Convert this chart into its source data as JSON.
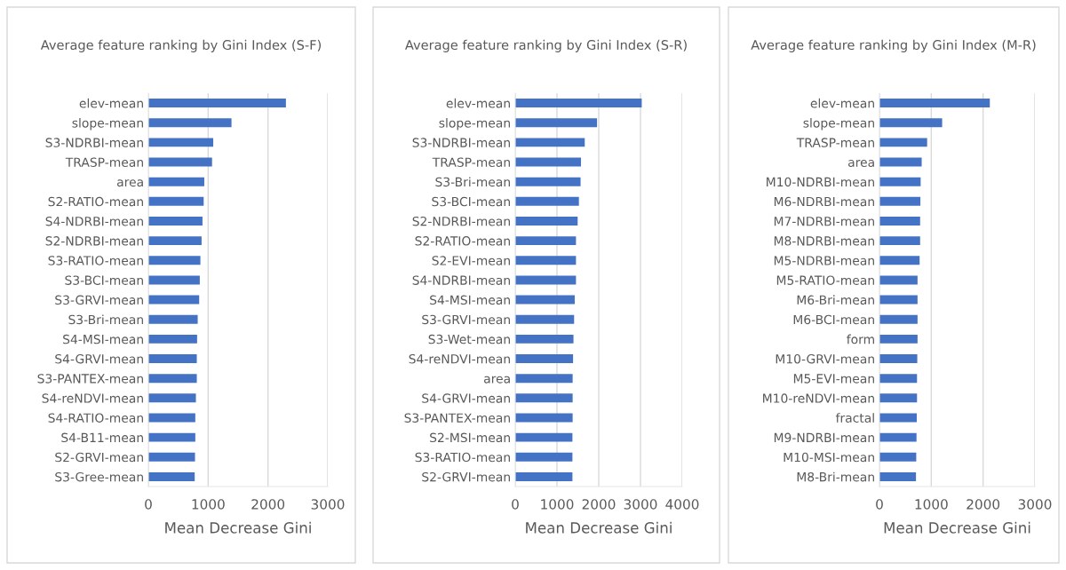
{
  "chart_data": [
    {
      "type": "bar",
      "orientation": "horizontal",
      "title": "Average feature ranking by Gini Index (S-F)",
      "xlabel": "Mean Decrease Gini",
      "categories": [
        "elev-mean",
        "slope-mean",
        "S3-NDRBI-mean",
        "TRASP-mean",
        "area",
        "S2-RATIO-mean",
        "S4-NDRBI-mean",
        "S2-NDRBI-mean",
        "S3-RATIO-mean",
        "S3-BCI-mean",
        "S3-GRVI-mean",
        "S3-Bri-mean",
        "S4-MSI-mean",
        "S4-GRVI-mean",
        "S3-PANTEX-mean",
        "S4-reNDVI-mean",
        "S4-RATIO-mean",
        "S4-B11-mean",
        "S2-GRVI-mean",
        "S3-Gree-mean"
      ],
      "values": [
        2300,
        1390,
        1085,
        1065,
        935,
        925,
        905,
        890,
        870,
        860,
        850,
        825,
        815,
        810,
        810,
        795,
        785,
        785,
        780,
        775
      ],
      "color": "#4472c4",
      "xlim": [
        0,
        3000
      ],
      "xticks": [
        0,
        1000,
        2000,
        3000
      ],
      "grid": "x",
      "legend": false
    },
    {
      "type": "bar",
      "orientation": "horizontal",
      "title": "Average feature ranking by Gini Index (S-R)",
      "xlabel": "Mean Decrease Gini",
      "categories": [
        "elev-mean",
        "slope-mean",
        "S3-NDRBI-mean",
        "TRASP-mean",
        "S3-Bri-mean",
        "S3-BCI-mean",
        "S2-NDRBI-mean",
        "S2-RATIO-mean",
        "S2-EVI-mean",
        "S4-NDRBI-mean",
        "S4-MSI-mean",
        "S3-GRVI-mean",
        "S3-Wet-mean",
        "S4-reNDVI-mean",
        "area",
        "S4-GRVI-mean",
        "S3-PANTEX-mean",
        "S2-MSI-mean",
        "S3-RATIO-mean",
        "S2-GRVI-mean"
      ],
      "values": [
        3030,
        1960,
        1665,
        1575,
        1565,
        1525,
        1495,
        1455,
        1455,
        1455,
        1425,
        1410,
        1395,
        1385,
        1375,
        1375,
        1375,
        1370,
        1370,
        1370
      ],
      "color": "#4472c4",
      "xlim": [
        0,
        4000
      ],
      "xticks": [
        0,
        1000,
        2000,
        3000,
        4000
      ],
      "grid": "x",
      "legend": false
    },
    {
      "type": "bar",
      "orientation": "horizontal",
      "title": "Average feature ranking by Gini Index (M-R)",
      "xlabel": "Mean Decrease Gini",
      "categories": [
        "elev-mean",
        "slope-mean",
        "TRASP-mean",
        "area",
        "M10-NDRBI-mean",
        "M6-NDRBI-mean",
        "M7-NDRBI-mean",
        "M8-NDRBI-mean",
        "M5-NDRBI-mean",
        "M5-RATIO-mean",
        "M6-Bri-mean",
        "M6-BCI-mean",
        "form",
        "M10-GRVI-mean",
        "M5-EVI-mean",
        "M10-reNDVI-mean",
        "fractal",
        "M9-NDRBI-mean",
        "M10-MSI-mean",
        "M8-Bri-mean"
      ],
      "values": [
        2130,
        1210,
        920,
        815,
        795,
        790,
        785,
        785,
        775,
        735,
        735,
        735,
        735,
        730,
        725,
        725,
        720,
        715,
        710,
        705
      ],
      "color": "#4472c4",
      "xlim": [
        0,
        3000
      ],
      "xticks": [
        0,
        1000,
        2000,
        3000
      ],
      "grid": "x",
      "legend": false
    }
  ]
}
